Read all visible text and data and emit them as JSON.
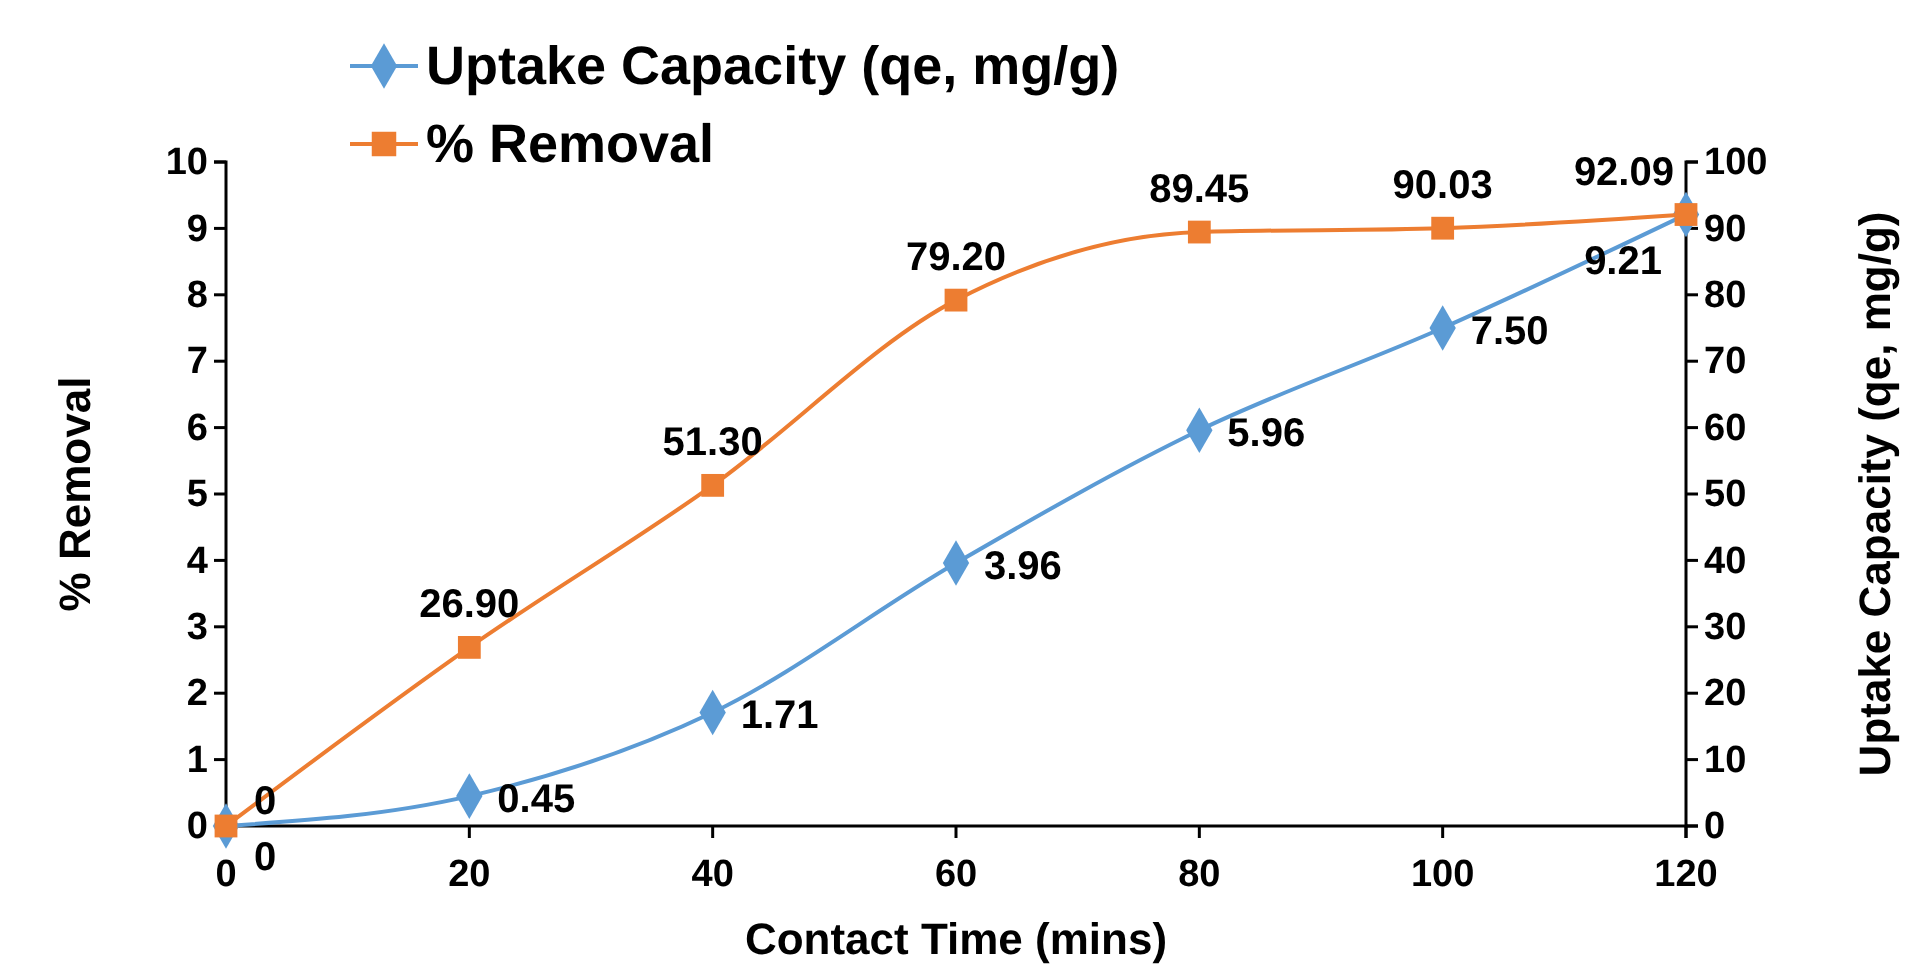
{
  "chart_data": {
    "type": "line",
    "xlabel": "Contact Time (mins)",
    "ylabel": "% Removal",
    "y2label": "Uptake Capacity (qe, mg/g)",
    "x": [
      0,
      20,
      40,
      60,
      80,
      100,
      120
    ],
    "series": [
      {
        "name": "Uptake Capacity (qe, mg/g)",
        "color": "#5b9bd5",
        "marker": "diamond",
        "values": [
          0,
          0.45,
          1.71,
          3.96,
          5.96,
          7.5,
          9.21
        ],
        "value_labels": [
          "0",
          "0.45",
          "1.71",
          "3.96",
          "5.96",
          "7.50",
          "9.21"
        ]
      },
      {
        "name": "% Removal",
        "color": "#ed7d31",
        "marker": "square",
        "axis": "y2",
        "values": [
          0,
          26.9,
          51.3,
          79.2,
          89.45,
          90.03,
          92.09
        ],
        "value_labels": [
          "0",
          "26.90",
          "51.30",
          "79.20",
          "89.45",
          "90.03",
          "92.09"
        ]
      }
    ],
    "xlim": [
      0,
      120
    ],
    "xticks": [
      0,
      20,
      40,
      60,
      80,
      100,
      120
    ],
    "ylim": [
      0,
      10
    ],
    "yticks": [
      0,
      1,
      2,
      3,
      4,
      5,
      6,
      7,
      8,
      9,
      10
    ],
    "y2lim": [
      0,
      100
    ],
    "y2ticks": [
      0,
      10,
      20,
      30,
      40,
      50,
      60,
      70,
      80,
      90,
      100
    ],
    "grid": false,
    "legend": "top left"
  }
}
